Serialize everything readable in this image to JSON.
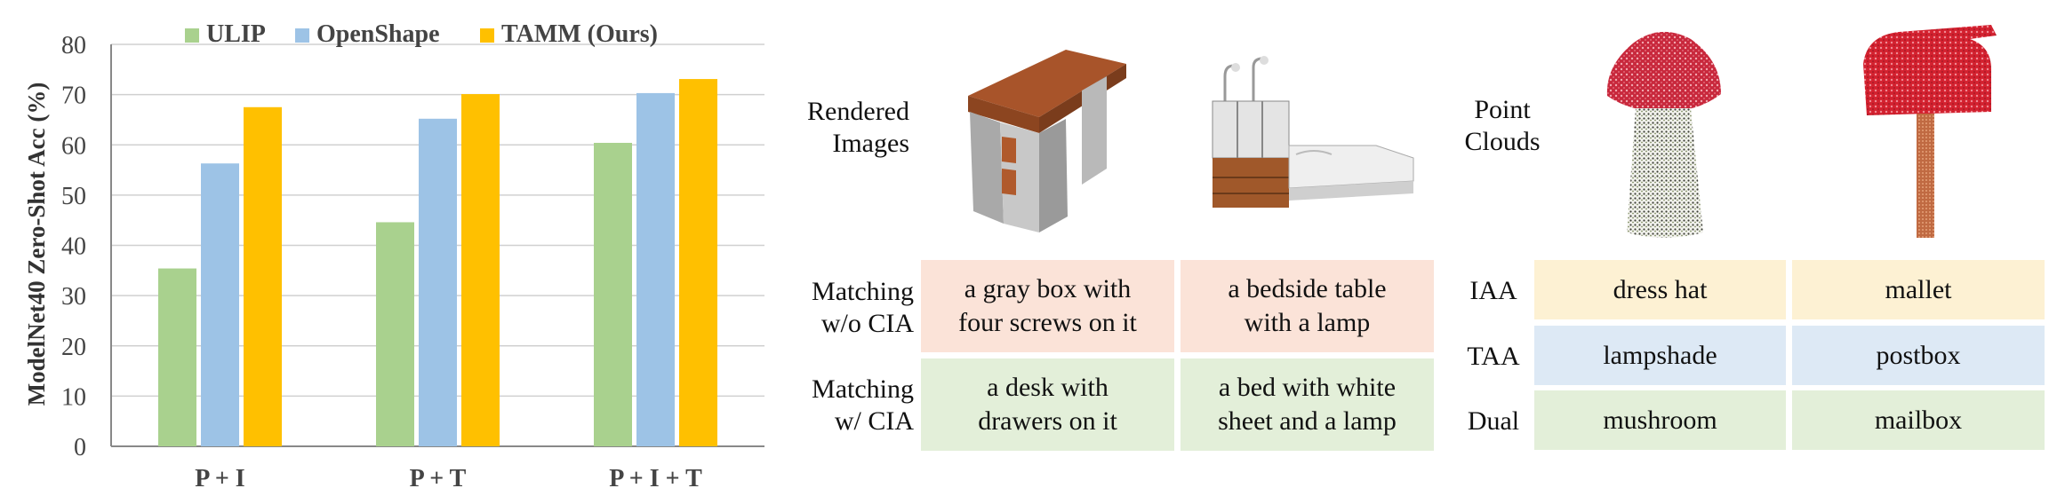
{
  "chart_data": {
    "type": "bar",
    "categories": [
      "P + I",
      "P + T",
      "P + I + T"
    ],
    "series": [
      {
        "name": "ULIP",
        "values": [
          35.4,
          44.6,
          60.4
        ],
        "color": "#a9d18e"
      },
      {
        "name": "OpenShape",
        "values": [
          56.3,
          65.2,
          70.3
        ],
        "color": "#9dc3e6"
      },
      {
        "name": "TAMM (Ours)",
        "values": [
          67.5,
          70.1,
          73.1
        ],
        "color": "#ffc000"
      }
    ],
    "ylabel": "ModelNet40 Zero-Shot Acc (%)",
    "ylim": [
      0,
      80
    ],
    "yticks": [
      0,
      10,
      20,
      30,
      40,
      50,
      60,
      70,
      80
    ],
    "grid": true,
    "legend": "top"
  },
  "cia": {
    "rendered_label": "Rendered\nImages",
    "row_wo_label": "Matching\nw/o CIA",
    "row_w_label": "Matching\nw/ CIA",
    "wo_cells": [
      "a gray box with\nfour screws on it",
      "a bedside table\nwith a lamp"
    ],
    "w_cells": [
      "a desk with\ndrawers on it",
      "a bed with white\nsheet and a lamp"
    ]
  },
  "adapters": {
    "point_label": "Point\nClouds",
    "rows": [
      {
        "label": "IAA",
        "cells": [
          "dress hat",
          "mallet"
        ],
        "color": "#fdf1d3"
      },
      {
        "label": "TAA",
        "cells": [
          "lampshade",
          "postbox"
        ],
        "color": "#dde9f5"
      },
      {
        "label": "Dual",
        "cells": [
          "mushroom",
          "mailbox"
        ],
        "color": "#e3efd9"
      }
    ]
  }
}
